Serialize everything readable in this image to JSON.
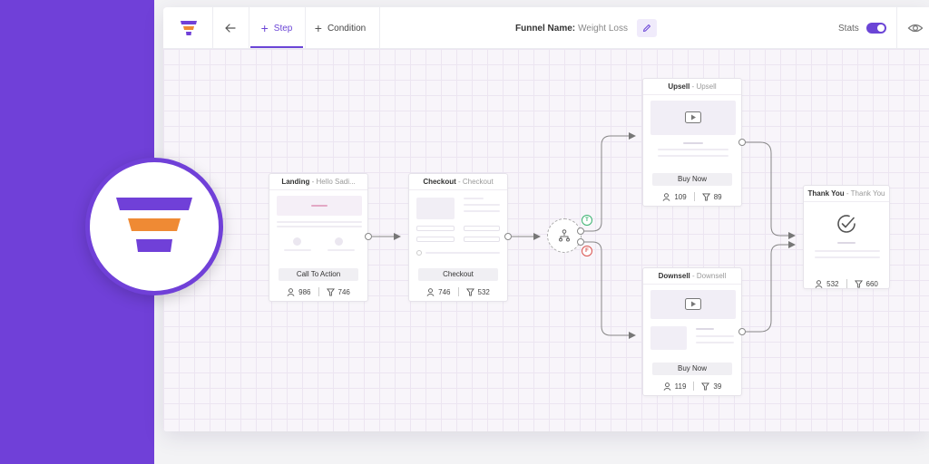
{
  "toolbar": {
    "tabs": [
      {
        "label": "Step",
        "active": true
      },
      {
        "label": "Condition",
        "active": false
      }
    ],
    "funnel_name_label": "Funnel Name:",
    "funnel_name_value": "Weight Loss",
    "stats_label": "Stats",
    "stats_enabled": true
  },
  "steps": [
    {
      "id": "landing",
      "type": "Landing",
      "name": "Hello Sadi...",
      "button": "Call To Action",
      "visitors": "986",
      "conversions": "746"
    },
    {
      "id": "checkout",
      "type": "Checkout",
      "name": "Checkout",
      "button": "Checkout",
      "visitors": "746",
      "conversions": "532"
    },
    {
      "id": "upsell",
      "type": "Upsell",
      "name": "Upsell",
      "button": "Buy Now",
      "visitors": "109",
      "conversions": "89"
    },
    {
      "id": "downsell",
      "type": "Downsell",
      "name": "Downsell",
      "button": "Buy Now",
      "visitors": "119",
      "conversions": "39"
    },
    {
      "id": "thankyou",
      "type": "Thank You",
      "name": "Thank You",
      "button": "",
      "visitors": "532",
      "conversions": "660"
    }
  ],
  "condition": {
    "true_label": "T",
    "false_label": "F"
  },
  "icons": {
    "back": "arrow-left-icon",
    "add": "plus-icon",
    "edit": "pencil-icon",
    "preview": "eye-icon",
    "visitors": "user-icon",
    "conversions": "filter-icon",
    "split": "branch-icon",
    "video": "play-icon",
    "complete": "check-circle-icon",
    "logo": "funnel-logo-icon"
  },
  "colors": {
    "brand_purple": "#7040d8",
    "logo_orange": "#ef8a34",
    "true_green": "#3cb371",
    "false_red": "#d9534f"
  }
}
